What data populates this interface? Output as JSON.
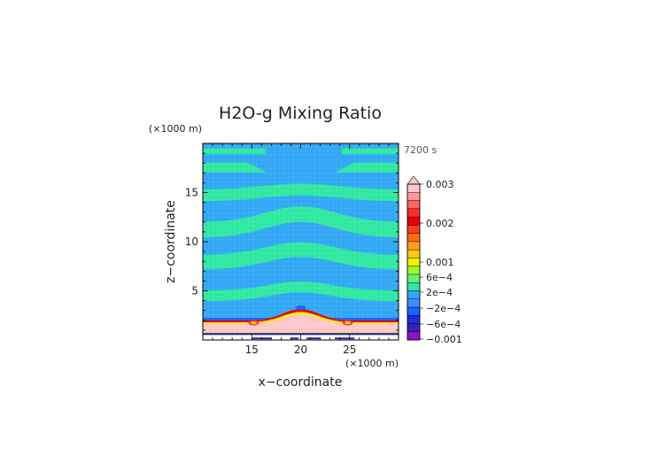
{
  "chart_data": {
    "type": "heatmap",
    "title": "H2O-g Mixing Ratio",
    "time_label": "7200 s",
    "xlabel": "x−coordinate",
    "ylabel": "z−coordinate",
    "x_unit": "(×1000 m)",
    "z_unit": "(×1000 m)",
    "xlim": [
      10,
      30
    ],
    "ylim": [
      0,
      20
    ],
    "x_ticks": [
      15,
      20,
      25
    ],
    "z_ticks": [
      5,
      10,
      15
    ],
    "grid": false,
    "legend_position": "right",
    "colorbar": {
      "labels": [
        "0.003",
        "0.002",
        "0.001",
        "6e−4",
        "2e−4",
        "−2e−4",
        "−6e−4",
        "−0.001"
      ],
      "colors": [
        "#8c14c8",
        "#3a1fb4",
        "#1e2cdc",
        "#1464ff",
        "#3c8cff",
        "#31a7f5",
        "#2ee8a0",
        "#63f276",
        "#9afa2a",
        "#f0f000",
        "#ffc814",
        "#ff9a1e",
        "#ff6e10",
        "#ff3c1e",
        "#e60000",
        "#ff2a2a",
        "#ff6464",
        "#ff9a9a",
        "#ffc8c8"
      ]
    },
    "structure": {
      "background_value": "-2e-4 to 2e-4",
      "bands_z": [
        {
          "z_center": 4.5,
          "value": "0 to 2e-4"
        },
        {
          "z_center": 7.9,
          "value": "0 to 2e-4"
        },
        {
          "z_center": 11.2,
          "value": "0 to 2e-4"
        },
        {
          "z_center": 14.7,
          "value": "0 to 2e-4"
        },
        {
          "z_center": 17.6,
          "value": "0 to 2e-4"
        },
        {
          "z_center": 19.2,
          "value": "0 to 2e-4"
        }
      ],
      "surface_layer_value": "0.003",
      "surface_layer_z": [
        0.7,
        1.9
      ],
      "peak_x": 20
    }
  }
}
